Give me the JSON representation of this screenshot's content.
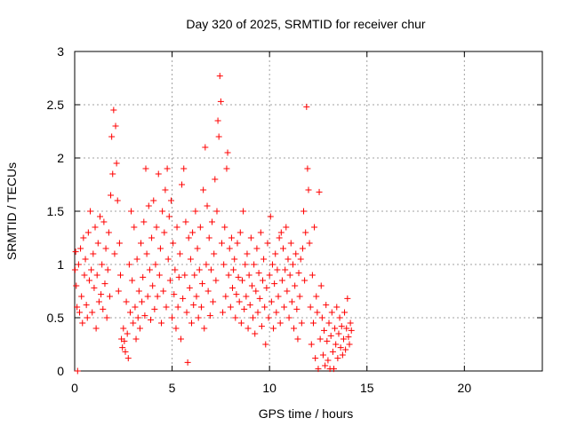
{
  "chart_data": {
    "type": "scatter",
    "title": "Day 320 of 2025, SRMTID for receiver chur",
    "xlabel": "GPS time / hours",
    "ylabel": "SRMTID / TECUs",
    "xlim": [
      0,
      24
    ],
    "ylim": [
      0,
      3
    ],
    "xticks": [
      0,
      5,
      10,
      15,
      20
    ],
    "xtick_labels": [
      "0",
      "5",
      "10",
      "15",
      "20"
    ],
    "yticks": [
      0,
      0.5,
      1,
      1.5,
      2,
      2.5,
      3
    ],
    "ytick_labels": [
      "0",
      "0.5",
      "1",
      "1.5",
      "2",
      "2.5",
      "3"
    ],
    "grid": true,
    "marker": "+",
    "series": [
      {
        "name": "SRMTID",
        "color": "#ff0000",
        "points": [
          [
            0.02,
            0.95
          ],
          [
            0.05,
            1.12
          ],
          [
            0.08,
            0.8
          ],
          [
            0.12,
            0.6
          ],
          [
            0.15,
            0.0
          ],
          [
            0.2,
            1.0
          ],
          [
            0.25,
            0.55
          ],
          [
            0.3,
            1.15
          ],
          [
            0.35,
            0.7
          ],
          [
            0.4,
            0.45
          ],
          [
            0.45,
            1.25
          ],
          [
            0.5,
            0.9
          ],
          [
            0.55,
            1.05
          ],
          [
            0.6,
            0.62
          ],
          [
            0.65,
            0.5
          ],
          [
            0.7,
            1.3
          ],
          [
            0.75,
            0.85
          ],
          [
            0.8,
            1.5
          ],
          [
            0.85,
            0.95
          ],
          [
            0.9,
            0.55
          ],
          [
            0.95,
            1.1
          ],
          [
            1.0,
            0.78
          ],
          [
            1.05,
            1.35
          ],
          [
            1.1,
            0.4
          ],
          [
            1.15,
            0.9
          ],
          [
            1.2,
            1.2
          ],
          [
            1.25,
            0.65
          ],
          [
            1.3,
            1.45
          ],
          [
            1.35,
            0.72
          ],
          [
            1.4,
            1.0
          ],
          [
            1.45,
            0.58
          ],
          [
            1.5,
            1.4
          ],
          [
            1.55,
            0.82
          ],
          [
            1.6,
            1.15
          ],
          [
            1.65,
            0.5
          ],
          [
            1.7,
            0.95
          ],
          [
            1.75,
            1.3
          ],
          [
            1.8,
            0.7
          ],
          [
            1.85,
            1.65
          ],
          [
            1.9,
            2.2
          ],
          [
            1.95,
            1.85
          ],
          [
            2.0,
            2.45
          ],
          [
            2.05,
            1.1
          ],
          [
            2.1,
            2.3
          ],
          [
            2.15,
            1.95
          ],
          [
            2.2,
            1.6
          ],
          [
            2.25,
            0.75
          ],
          [
            2.3,
            1.2
          ],
          [
            2.35,
            0.9
          ],
          [
            2.4,
            0.3
          ],
          [
            2.45,
            0.22
          ],
          [
            2.5,
            0.4
          ],
          [
            2.55,
            0.28
          ],
          [
            2.6,
            0.18
          ],
          [
            2.65,
            0.65
          ],
          [
            2.7,
            0.35
          ],
          [
            2.75,
            0.12
          ],
          [
            2.8,
            1.0
          ],
          [
            2.85,
            0.55
          ],
          [
            2.9,
            1.5
          ],
          [
            2.95,
            0.85
          ],
          [
            3.0,
            0.45
          ],
          [
            3.05,
            1.35
          ],
          [
            3.1,
            0.6
          ],
          [
            3.15,
            0.3
          ],
          [
            3.2,
            1.05
          ],
          [
            3.25,
            0.5
          ],
          [
            3.3,
            0.75
          ],
          [
            3.35,
            0.4
          ],
          [
            3.4,
            1.2
          ],
          [
            3.45,
            0.65
          ],
          [
            3.5,
            0.88
          ],
          [
            3.55,
            1.4
          ],
          [
            3.6,
            0.52
          ],
          [
            3.65,
            1.9
          ],
          [
            3.7,
            1.1
          ],
          [
            3.75,
            0.7
          ],
          [
            3.8,
            1.55
          ],
          [
            3.85,
            0.95
          ],
          [
            3.9,
            0.48
          ],
          [
            3.95,
            1.25
          ],
          [
            4.0,
            0.8
          ],
          [
            4.05,
            1.6
          ],
          [
            4.1,
            0.58
          ],
          [
            4.15,
            1.0
          ],
          [
            4.2,
            1.35
          ],
          [
            4.25,
            0.7
          ],
          [
            4.3,
            1.85
          ],
          [
            4.35,
            0.9
          ],
          [
            4.4,
            1.15
          ],
          [
            4.45,
            0.45
          ],
          [
            4.5,
            1.5
          ],
          [
            4.55,
            0.75
          ],
          [
            4.6,
            1.3
          ],
          [
            4.65,
            1.7
          ],
          [
            4.7,
            0.6
          ],
          [
            4.75,
            1.9
          ],
          [
            4.8,
            1.05
          ],
          [
            4.85,
            1.45
          ],
          [
            4.9,
            0.85
          ],
          [
            4.95,
            1.6
          ],
          [
            5.0,
            0.5
          ],
          [
            5.05,
            1.2
          ],
          [
            5.1,
            0.72
          ],
          [
            5.15,
            0.95
          ],
          [
            5.2,
            0.4
          ],
          [
            5.25,
            1.35
          ],
          [
            5.3,
            0.6
          ],
          [
            5.35,
            0.88
          ],
          [
            5.4,
            1.1
          ],
          [
            5.45,
            0.3
          ],
          [
            5.5,
            1.75
          ],
          [
            5.55,
            0.68
          ],
          [
            5.6,
            1.9
          ],
          [
            5.65,
            0.9
          ],
          [
            5.7,
            1.4
          ],
          [
            5.75,
            0.55
          ],
          [
            5.8,
            0.08
          ],
          [
            5.85,
            1.25
          ],
          [
            5.9,
            0.78
          ],
          [
            5.95,
            1.05
          ],
          [
            6.0,
            0.45
          ],
          [
            6.05,
            1.3
          ],
          [
            6.1,
            0.62
          ],
          [
            6.15,
            0.9
          ],
          [
            6.2,
            1.5
          ],
          [
            6.25,
            0.7
          ],
          [
            6.3,
            1.15
          ],
          [
            6.35,
            0.5
          ],
          [
            6.4,
            0.95
          ],
          [
            6.45,
            1.35
          ],
          [
            6.5,
            0.6
          ],
          [
            6.55,
            0.82
          ],
          [
            6.6,
            1.7
          ],
          [
            6.65,
            0.4
          ],
          [
            6.7,
            2.1
          ],
          [
            6.75,
            1.0
          ],
          [
            6.8,
            1.55
          ],
          [
            6.85,
            0.75
          ],
          [
            6.9,
            1.25
          ],
          [
            6.95,
            0.52
          ],
          [
            7.0,
            0.95
          ],
          [
            7.05,
            1.4
          ],
          [
            7.1,
            0.65
          ],
          [
            7.15,
            1.1
          ],
          [
            7.2,
            1.8
          ],
          [
            7.25,
            0.85
          ],
          [
            7.3,
            1.5
          ],
          [
            7.35,
            2.35
          ],
          [
            7.4,
            2.2
          ],
          [
            7.45,
            2.77
          ],
          [
            7.5,
            2.53
          ],
          [
            7.55,
            1.2
          ],
          [
            7.6,
            0.55
          ],
          [
            7.65,
            1.0
          ],
          [
            7.7,
            1.35
          ],
          [
            7.75,
            0.7
          ],
          [
            7.8,
            1.9
          ],
          [
            7.85,
            2.05
          ],
          [
            7.9,
            0.9
          ],
          [
            7.95,
            1.15
          ],
          [
            8.0,
            0.6
          ],
          [
            8.05,
            1.25
          ],
          [
            8.1,
            0.78
          ],
          [
            8.15,
            0.95
          ],
          [
            8.2,
            1.05
          ],
          [
            8.25,
            0.5
          ],
          [
            8.3,
            0.72
          ],
          [
            8.35,
            1.2
          ],
          [
            8.4,
            0.88
          ],
          [
            8.45,
            0.65
          ],
          [
            8.5,
            1.3
          ],
          [
            8.55,
            0.45
          ],
          [
            8.6,
            0.85
          ],
          [
            8.65,
            1.5
          ],
          [
            8.7,
            0.58
          ],
          [
            8.75,
            1.0
          ],
          [
            8.8,
            0.7
          ],
          [
            8.85,
            1.1
          ],
          [
            8.9,
            0.4
          ],
          [
            8.95,
            0.9
          ],
          [
            9.0,
            0.62
          ],
          [
            9.05,
            1.25
          ],
          [
            9.1,
            0.8
          ],
          [
            9.15,
            0.5
          ],
          [
            9.2,
            1.0
          ],
          [
            9.25,
            0.35
          ],
          [
            9.3,
            0.75
          ],
          [
            9.35,
            1.15
          ],
          [
            9.4,
            0.55
          ],
          [
            9.45,
            0.92
          ],
          [
            9.5,
            0.68
          ],
          [
            9.55,
            1.3
          ],
          [
            9.6,
            0.42
          ],
          [
            9.65,
            0.85
          ],
          [
            9.7,
            1.05
          ],
          [
            9.75,
            0.6
          ],
          [
            9.8,
            0.25
          ],
          [
            9.85,
            0.78
          ],
          [
            9.9,
            1.2
          ],
          [
            9.95,
            0.5
          ],
          [
            10.0,
            0.9
          ],
          [
            10.05,
            1.45
          ],
          [
            10.1,
            0.65
          ],
          [
            10.15,
            1.0
          ],
          [
            10.2,
            0.4
          ],
          [
            10.25,
            0.82
          ],
          [
            10.3,
            1.1
          ],
          [
            10.35,
            0.55
          ],
          [
            10.4,
            0.95
          ],
          [
            10.45,
            0.7
          ],
          [
            10.5,
            1.25
          ],
          [
            10.55,
            0.45
          ],
          [
            10.6,
            1.3
          ],
          [
            10.65,
            0.85
          ],
          [
            10.7,
            1.15
          ],
          [
            10.75,
            0.6
          ],
          [
            10.8,
            0.95
          ],
          [
            10.85,
            1.35
          ],
          [
            10.9,
            0.75
          ],
          [
            10.95,
            1.05
          ],
          [
            11.0,
            0.5
          ],
          [
            11.05,
            0.9
          ],
          [
            11.1,
            1.2
          ],
          [
            11.15,
            0.65
          ],
          [
            11.2,
            1.0
          ],
          [
            11.25,
            0.4
          ],
          [
            11.3,
            0.8
          ],
          [
            11.35,
            1.1
          ],
          [
            11.4,
            0.58
          ],
          [
            11.45,
            0.3
          ],
          [
            11.5,
            0.92
          ],
          [
            11.55,
            0.7
          ],
          [
            11.6,
            1.05
          ],
          [
            11.65,
            0.45
          ],
          [
            11.7,
            1.15
          ],
          [
            11.75,
            1.5
          ],
          [
            11.8,
            0.85
          ],
          [
            11.85,
            1.3
          ],
          [
            11.9,
            2.48
          ],
          [
            11.95,
            1.9
          ],
          [
            12.0,
            1.7
          ],
          [
            12.05,
            1.2
          ],
          [
            12.1,
            0.6
          ],
          [
            12.15,
            0.25
          ],
          [
            12.2,
            0.9
          ],
          [
            12.25,
            0.45
          ],
          [
            12.3,
            1.35
          ],
          [
            12.35,
            0.12
          ],
          [
            12.4,
            0.7
          ],
          [
            12.45,
            0.55
          ],
          [
            12.5,
            0.02
          ],
          [
            12.55,
            1.68
          ],
          [
            12.6,
            0.3
          ],
          [
            12.65,
            0.8
          ],
          [
            12.7,
            0.5
          ],
          [
            12.75,
            0.15
          ],
          [
            12.8,
            0.38
          ],
          [
            12.85,
            0.05
          ],
          [
            12.9,
            0.62
          ],
          [
            12.95,
            0.28
          ],
          [
            13.0,
            0.1
          ],
          [
            13.05,
            0.45
          ],
          [
            13.1,
            0.02
          ],
          [
            13.15,
            0.33
          ],
          [
            13.2,
            0.55
          ],
          [
            13.25,
            0.18
          ],
          [
            13.3,
            0.02
          ],
          [
            13.35,
            0.4
          ],
          [
            13.4,
            0.25
          ],
          [
            13.45,
            0.6
          ],
          [
            13.5,
            0.12
          ],
          [
            13.55,
            0.35
          ],
          [
            13.6,
            0.5
          ],
          [
            13.65,
            0.22
          ],
          [
            13.7,
            0.42
          ],
          [
            13.75,
            0.15
          ],
          [
            13.8,
            0.3
          ],
          [
            13.85,
            0.55
          ],
          [
            13.9,
            0.2
          ],
          [
            13.95,
            0.4
          ],
          [
            14.0,
            0.68
          ],
          [
            14.05,
            0.32
          ],
          [
            14.1,
            0.25
          ],
          [
            14.15,
            0.45
          ],
          [
            14.2,
            0.38
          ]
        ]
      }
    ]
  }
}
